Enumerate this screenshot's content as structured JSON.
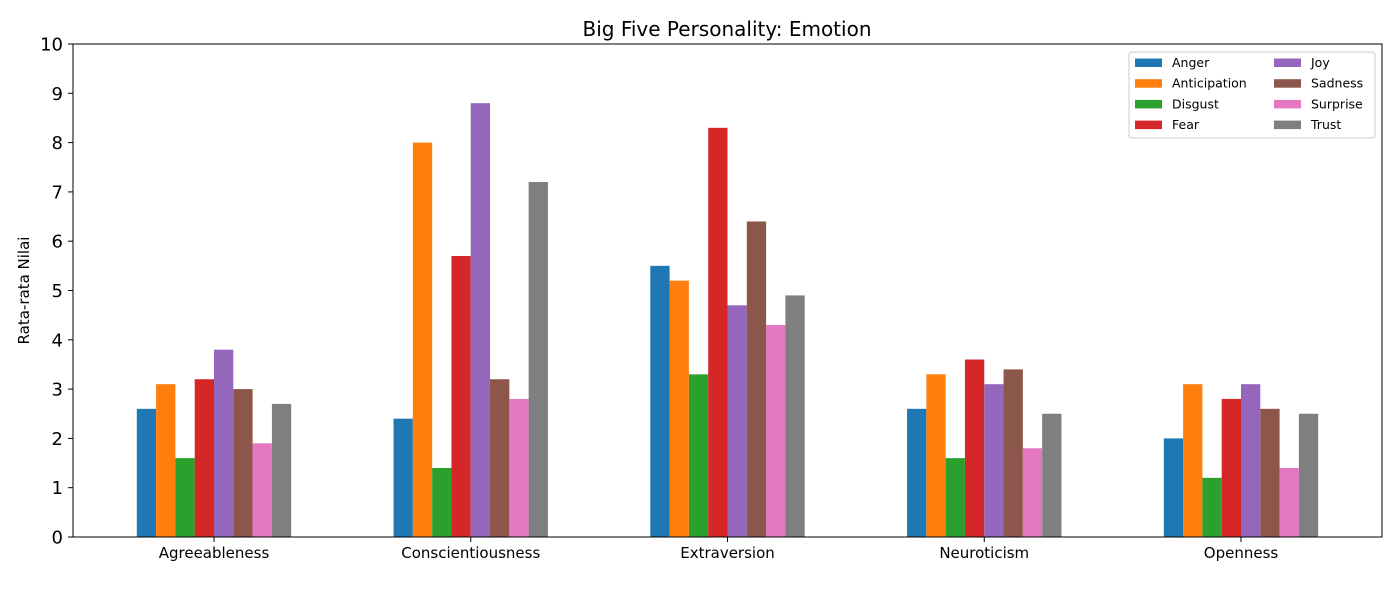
{
  "chart_data": {
    "type": "bar",
    "title": "Big Five Personality: Emotion",
    "xlabel": "",
    "ylabel": "Rata-rata Nilai",
    "ylim": [
      0,
      10
    ],
    "yticks": [
      "0",
      "1",
      "2",
      "3",
      "4",
      "5",
      "6",
      "7",
      "8",
      "9",
      "10"
    ],
    "grid": false,
    "legend_position": "top-right",
    "legend_columns": 2,
    "categories": [
      "Agreeableness",
      "Conscientiousness",
      "Extraversion",
      "Neuroticism",
      "Openness"
    ],
    "series": [
      {
        "name": "Anger",
        "color": "#1f77b4",
        "values": [
          2.6,
          2.4,
          5.5,
          2.6,
          2.0
        ]
      },
      {
        "name": "Anticipation",
        "color": "#ff7f0e",
        "values": [
          3.1,
          8.0,
          5.2,
          3.3,
          3.1
        ]
      },
      {
        "name": "Disgust",
        "color": "#2ca02c",
        "values": [
          1.6,
          1.4,
          3.3,
          1.6,
          1.2
        ]
      },
      {
        "name": "Fear",
        "color": "#d62728",
        "values": [
          3.2,
          5.7,
          8.3,
          3.6,
          2.8
        ]
      },
      {
        "name": "Joy",
        "color": "#9467bd",
        "values": [
          3.8,
          8.8,
          4.7,
          3.1,
          3.1
        ]
      },
      {
        "name": "Sadness",
        "color": "#8c564b",
        "values": [
          3.0,
          3.2,
          6.4,
          3.4,
          2.6
        ]
      },
      {
        "name": "Surprise",
        "color": "#e377c2",
        "values": [
          1.9,
          2.8,
          4.3,
          1.8,
          1.4
        ]
      },
      {
        "name": "Trust",
        "color": "#7f7f7f",
        "values": [
          2.7,
          7.2,
          4.9,
          2.5,
          2.5
        ]
      }
    ]
  }
}
